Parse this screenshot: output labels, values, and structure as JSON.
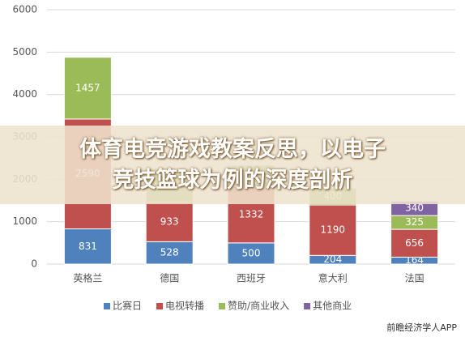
{
  "chart_data": {
    "type": "stacked_bar",
    "categories": [
      "英格兰",
      "德国",
      "西班牙",
      "意大利",
      "法国"
    ],
    "series": [
      {
        "name": "比赛日",
        "color": "#4f81bd",
        "values": [
          831,
          528,
          500,
          204,
          164
        ]
      },
      {
        "name": "电视转播",
        "color": "#c0504d",
        "values": [
          2590,
          933,
          1332,
          1190,
          656
        ]
      },
      {
        "name": "赞助/商业收入",
        "color": "#9bbb59",
        "values": [
          1457,
          800,
          500,
          400,
          325
        ]
      },
      {
        "name": "其他商业",
        "color": "#8064a2",
        "values": [
          null,
          null,
          null,
          null,
          340
        ]
      }
    ],
    "ylim": [
      0,
      6000
    ],
    "yticks": [
      0,
      1000,
      2000,
      3000,
      4000,
      5000,
      6000
    ],
    "grid": true,
    "legend": "bottom"
  },
  "banner": {
    "lines": [
      "体育电竞游戏教案反思，以电子",
      "竞技篮球为例的深度剖析"
    ]
  },
  "footer": "前瞻经济学人APP"
}
